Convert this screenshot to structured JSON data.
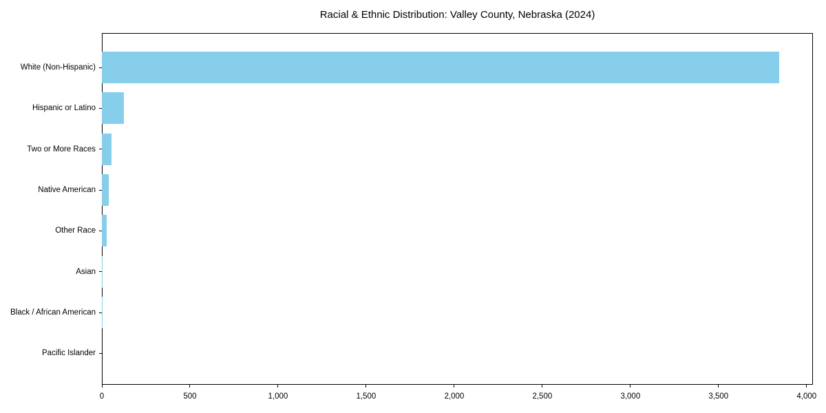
{
  "chart_data": {
    "type": "bar",
    "orientation": "horizontal",
    "title": "Racial & Ethnic Distribution: Valley County, Nebraska (2024)",
    "categories": [
      "White (Non-Hispanic)",
      "Hispanic or Latino",
      "Two or More Races",
      "Native American",
      "Other Race",
      "Asian",
      "Black / African American",
      "Pacific Islander"
    ],
    "values": [
      3845,
      125,
      55,
      38,
      27,
      5,
      2,
      0
    ],
    "xlabel": "",
    "ylabel": "",
    "xlim": [
      0,
      4036
    ],
    "x_ticks": [
      0,
      500,
      1000,
      1500,
      2000,
      2500,
      3000,
      3500,
      4000
    ],
    "x_tick_labels": [
      "0",
      "500",
      "1,000",
      "1,500",
      "2,000",
      "2,500",
      "3,000",
      "3,500",
      "4,000"
    ],
    "bar_color": "#87CEEB",
    "axis_color": "#000000",
    "background_color": "#ffffff",
    "grid": false,
    "legend": null
  }
}
